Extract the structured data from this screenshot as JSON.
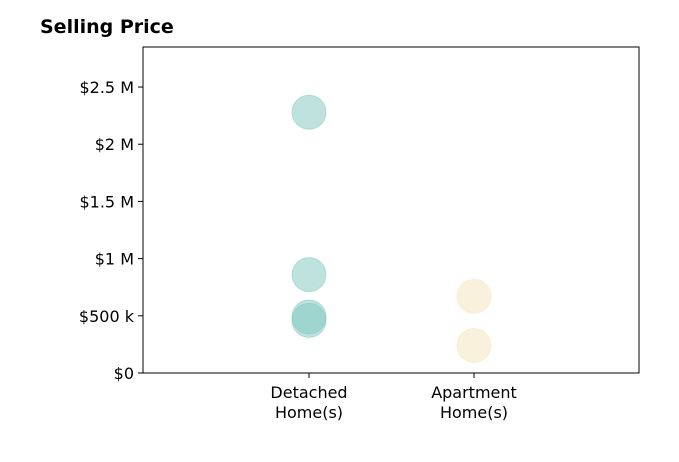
{
  "chart_data": {
    "type": "scatter",
    "title": "Selling Price",
    "xlabel": "",
    "ylabel": "",
    "categories": [
      "Detached|Home(s)",
      "Apartment|Home(s)"
    ],
    "ylim": [
      0,
      2850000
    ],
    "y_ticks": [
      {
        "value": 0,
        "label": "$0"
      },
      {
        "value": 500000,
        "label": "$500 k"
      },
      {
        "value": 1000000,
        "label": "$1 M"
      },
      {
        "value": 1500000,
        "label": "$1.5 M"
      },
      {
        "value": 2000000,
        "label": "$2 M"
      },
      {
        "value": 2500000,
        "label": "$2.5 M"
      }
    ],
    "series": [
      {
        "category": "Detached|Home(s)",
        "color": "#7ec8bf",
        "values": [
          2280000,
          860000,
          490000,
          460000
        ]
      },
      {
        "category": "Apartment|Home(s)",
        "color": "#f5e3bb",
        "values": [
          670000,
          240000
        ]
      }
    ],
    "grid": false,
    "legend": "none"
  }
}
